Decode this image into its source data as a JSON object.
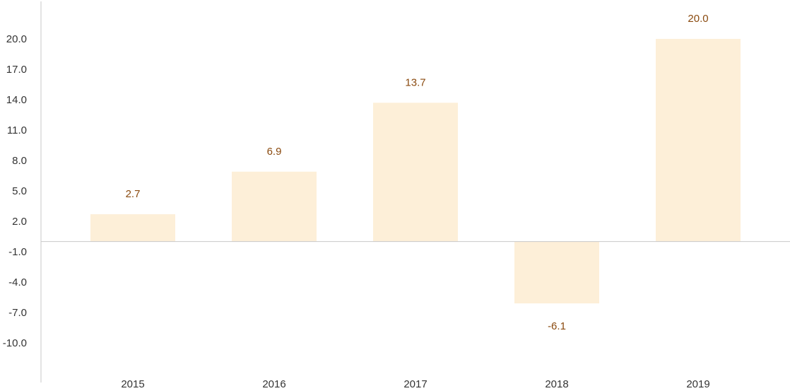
{
  "chart_data": {
    "type": "bar",
    "title": "",
    "xlabel": "",
    "ylabel": "",
    "categories": [
      "2015",
      "2016",
      "2017",
      "2018",
      "2019"
    ],
    "values": [
      2.7,
      6.9,
      13.7,
      -6.1,
      20.0
    ],
    "value_labels": [
      "2.7",
      "6.9",
      "13.7",
      "-6.1",
      "20.0"
    ],
    "y_ticks": [
      20.0,
      17.0,
      14.0,
      11.0,
      8.0,
      5.0,
      2.0,
      -1.0,
      -4.0,
      -7.0,
      -10.0
    ],
    "y_tick_labels": [
      "20.0",
      "17.0",
      "14.0",
      "11.0",
      "8.0",
      "5.0",
      "2.0",
      "-1.0",
      "-4.0",
      "-7.0",
      "-10.0"
    ],
    "grid": false,
    "legend": "none",
    "colors": {
      "bar": "#fdefd8",
      "data_label": "#8a4a0f",
      "axis": "#c8c8c8",
      "tick_text": "#333333"
    }
  }
}
